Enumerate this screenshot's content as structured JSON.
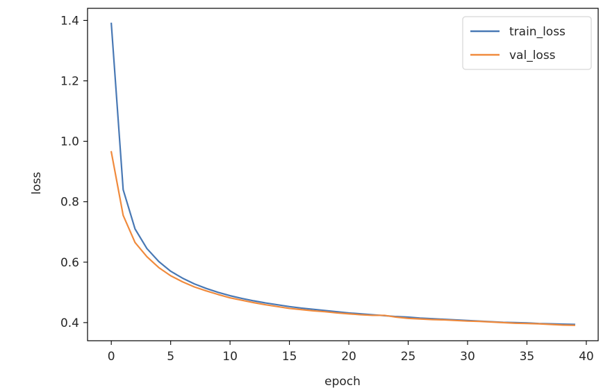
{
  "chart_data": {
    "type": "line",
    "title": "",
    "xlabel": "epoch",
    "ylabel": "loss",
    "xlim": [
      -2.0,
      41.0
    ],
    "ylim": [
      0.34,
      1.44
    ],
    "xticks": [
      0,
      5,
      10,
      15,
      20,
      25,
      30,
      35,
      40
    ],
    "yticks": [
      0.4,
      0.6,
      0.8,
      1.0,
      1.2,
      1.4
    ],
    "xtick_labels": [
      "0",
      "5",
      "10",
      "15",
      "20",
      "25",
      "30",
      "35",
      "40"
    ],
    "ytick_labels": [
      "0.4",
      "0.6",
      "0.8",
      "1.0",
      "1.2",
      "1.4"
    ],
    "grid": false,
    "legend_position": "top-right",
    "series": [
      {
        "name": "train_loss",
        "color": "#4878b4",
        "x": [
          0,
          1,
          2,
          3,
          4,
          5,
          6,
          7,
          8,
          9,
          10,
          11,
          12,
          13,
          14,
          15,
          16,
          17,
          18,
          19,
          20,
          21,
          22,
          23,
          24,
          25,
          26,
          27,
          28,
          29,
          30,
          31,
          32,
          33,
          34,
          35,
          36,
          37,
          38,
          39
        ],
        "values": [
          1.39,
          0.84,
          0.71,
          0.645,
          0.602,
          0.57,
          0.547,
          0.528,
          0.513,
          0.5,
          0.489,
          0.48,
          0.472,
          0.465,
          0.459,
          0.453,
          0.448,
          0.444,
          0.44,
          0.436,
          0.432,
          0.429,
          0.426,
          0.423,
          0.42,
          0.418,
          0.415,
          0.413,
          0.411,
          0.409,
          0.407,
          0.405,
          0.403,
          0.401,
          0.4,
          0.399,
          0.397,
          0.396,
          0.395,
          0.394
        ]
      },
      {
        "name": "val_loss",
        "color": "#f08a3c",
        "x": [
          0,
          1,
          2,
          3,
          4,
          5,
          6,
          7,
          8,
          9,
          10,
          11,
          12,
          13,
          14,
          15,
          16,
          17,
          18,
          19,
          20,
          21,
          22,
          23,
          24,
          25,
          26,
          27,
          28,
          29,
          30,
          31,
          32,
          33,
          34,
          35,
          36,
          37,
          38,
          39
        ],
        "values": [
          0.965,
          0.755,
          0.665,
          0.618,
          0.582,
          0.555,
          0.535,
          0.518,
          0.505,
          0.493,
          0.482,
          0.474,
          0.466,
          0.459,
          0.453,
          0.447,
          0.443,
          0.439,
          0.436,
          0.432,
          0.429,
          0.426,
          0.424,
          0.424,
          0.418,
          0.414,
          0.412,
          0.41,
          0.409,
          0.407,
          0.405,
          0.404,
          0.402,
          0.4,
          0.398,
          0.397,
          0.396,
          0.394,
          0.392,
          0.391
        ]
      }
    ]
  }
}
